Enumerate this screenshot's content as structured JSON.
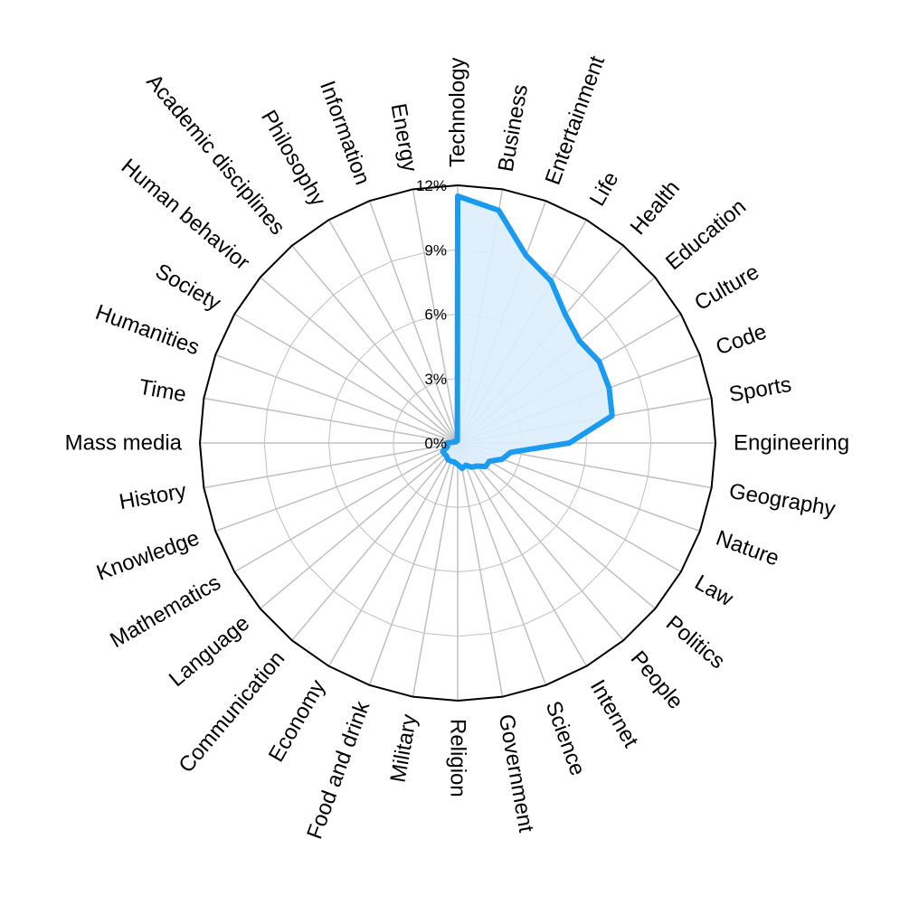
{
  "chart_data": {
    "type": "radar",
    "title": "",
    "categories": [
      "Technology",
      "Business",
      "Entertainment",
      "Life",
      "Health",
      "Education",
      "Culture",
      "Code",
      "Sports",
      "Engineering",
      "Geography",
      "Nature",
      "Law",
      "Politics",
      "People",
      "Internet",
      "Science",
      "Government",
      "Religion",
      "Military",
      "Food and drink",
      "Economy",
      "Communication",
      "Language",
      "Mathematics",
      "Knowledge",
      "History",
      "Mass media",
      "Time",
      "Humanities",
      "Society",
      "Human behavior",
      "Academic disciplines",
      "Philosophy",
      "Information",
      "Energy"
    ],
    "series": [
      {
        "values": [
          11.5,
          11.0,
          9.3,
          8.7,
          7.8,
          7.4,
          7.6,
          7.5,
          7.3,
          5.2,
          2.5,
          2.2,
          1.7,
          1.7,
          1.4,
          1.3,
          1.1,
          1.2,
          1.0,
          0.9,
          0.9,
          0.9,
          0.8,
          0.8,
          0.8,
          0.5,
          0.5,
          0.5,
          0.2,
          0.2,
          0.1,
          0.1,
          0.1,
          0.1,
          0.1,
          0.1
        ]
      }
    ],
    "radial_ticks": [
      "0%",
      "3%",
      "6%",
      "9%",
      "12%"
    ],
    "radial_tick_values": [
      0,
      3,
      6,
      9,
      12
    ],
    "rmax": 12,
    "grid": true,
    "colors": {
      "line": "#1a9bf0",
      "fill": "#dbeefc",
      "grid": "#c0c0c0",
      "outer_ring": "#000000"
    }
  }
}
